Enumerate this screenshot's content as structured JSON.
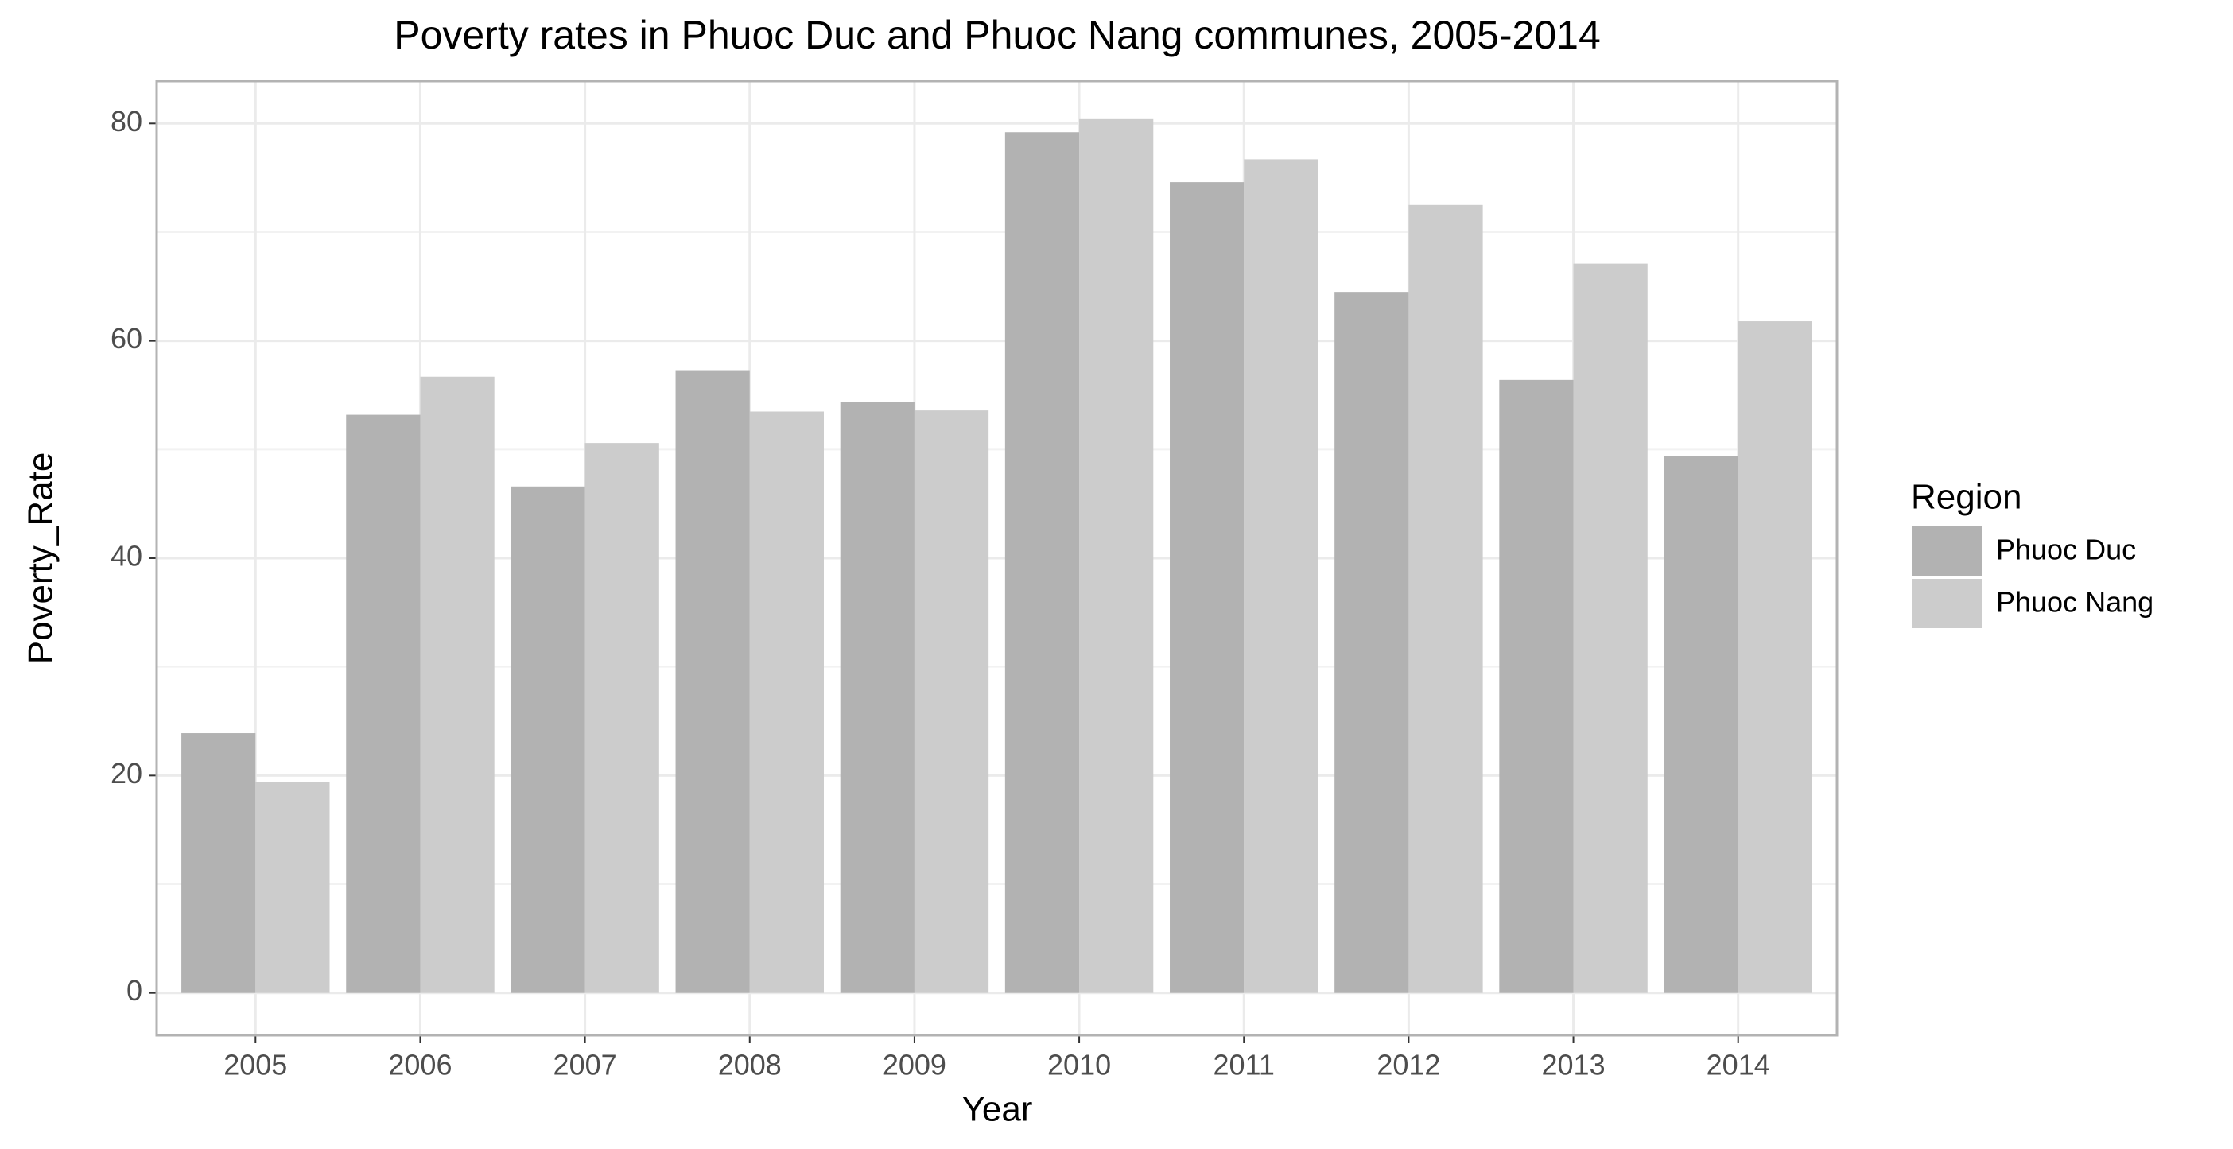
{
  "chart_data": {
    "type": "bar",
    "title": "Poverty rates in Phuoc Duc and Phuoc Nang communes, 2005-2014",
    "x_label": "Year",
    "y_label": "Poverty_Rate",
    "legend_title": "Region",
    "categories": [
      "2005",
      "2006",
      "2007",
      "2008",
      "2009",
      "2010",
      "2011",
      "2012",
      "2013",
      "2014"
    ],
    "series": [
      {
        "name": "Phuoc Duc",
        "color": "#b2b2b2",
        "values": [
          23.9,
          53.2,
          46.6,
          57.3,
          54.4,
          79.2,
          74.6,
          64.5,
          56.4,
          49.4
        ]
      },
      {
        "name": "Phuoc Nang",
        "color": "#cccccc",
        "values": [
          19.4,
          56.7,
          50.6,
          53.5,
          53.6,
          80.4,
          76.7,
          72.5,
          67.1,
          61.8
        ]
      }
    ],
    "ylim": [
      -3.9,
      83.9
    ],
    "yticks": [
      0,
      20,
      40,
      60,
      80
    ],
    "grid": true,
    "legend": "right"
  }
}
